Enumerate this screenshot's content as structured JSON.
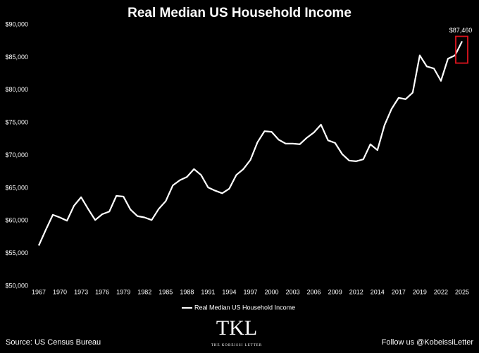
{
  "chart_data": {
    "type": "line",
    "title": "Real Median US Household Income",
    "categories": [
      "1967",
      null,
      null,
      "1970",
      null,
      null,
      "1973",
      null,
      null,
      "1976",
      null,
      null,
      "1979",
      null,
      null,
      "1982",
      null,
      null,
      "1985",
      null,
      null,
      "1988",
      null,
      null,
      "1991",
      null,
      null,
      "1994",
      null,
      null,
      "1997",
      null,
      null,
      "2000",
      null,
      null,
      "2003",
      null,
      null,
      "2006",
      null,
      null,
      "2009",
      null,
      null,
      "2012",
      null,
      null,
      "2014",
      null,
      null,
      "2017",
      null,
      null,
      "2019",
      null,
      null,
      "2022",
      null,
      null,
      "2025"
    ],
    "series": [
      {
        "name": "Real Median US Household Income",
        "color": "#ffffff",
        "values": [
          56200,
          58600,
          60900,
          60500,
          60000,
          62300,
          63600,
          61800,
          60100,
          61000,
          61400,
          63800,
          63700,
          61700,
          60700,
          60500,
          60100,
          61800,
          63000,
          65400,
          66200,
          66700,
          67900,
          67000,
          65100,
          64600,
          64200,
          64900,
          67000,
          67900,
          69300,
          72000,
          73700,
          73600,
          72400,
          71800,
          71800,
          71700,
          72700,
          73500,
          74700,
          72300,
          71900,
          70200,
          69200,
          69100,
          69400,
          71700,
          70800,
          74600,
          77100,
          78800,
          78600,
          79600,
          85300,
          83600,
          83300,
          81400,
          84800,
          85300,
          87460
        ]
      }
    ],
    "annotation": "$87,460",
    "highlight_color": "#e0141e",
    "ylim": [
      50000,
      90000
    ],
    "yticks": [
      {
        "value": 50000,
        "label": "$50,000"
      },
      {
        "value": 55000,
        "label": "$55,000"
      },
      {
        "value": 60000,
        "label": "$60,000"
      },
      {
        "value": 65000,
        "label": "$65,000"
      },
      {
        "value": 70000,
        "label": "$70,000"
      },
      {
        "value": 75000,
        "label": "$75,000"
      },
      {
        "value": 80000,
        "label": "$80,000"
      },
      {
        "value": 85000,
        "label": "$85,000"
      },
      {
        "value": 90000,
        "label": "$90,000"
      }
    ],
    "grid": false,
    "legend": "bottom",
    "source": "Source: US Census Bureau",
    "footer": "Follow us @KobeissiLetter",
    "logo": "TKL",
    "logo_subtitle": "THE KOBEISSI LETTER"
  }
}
